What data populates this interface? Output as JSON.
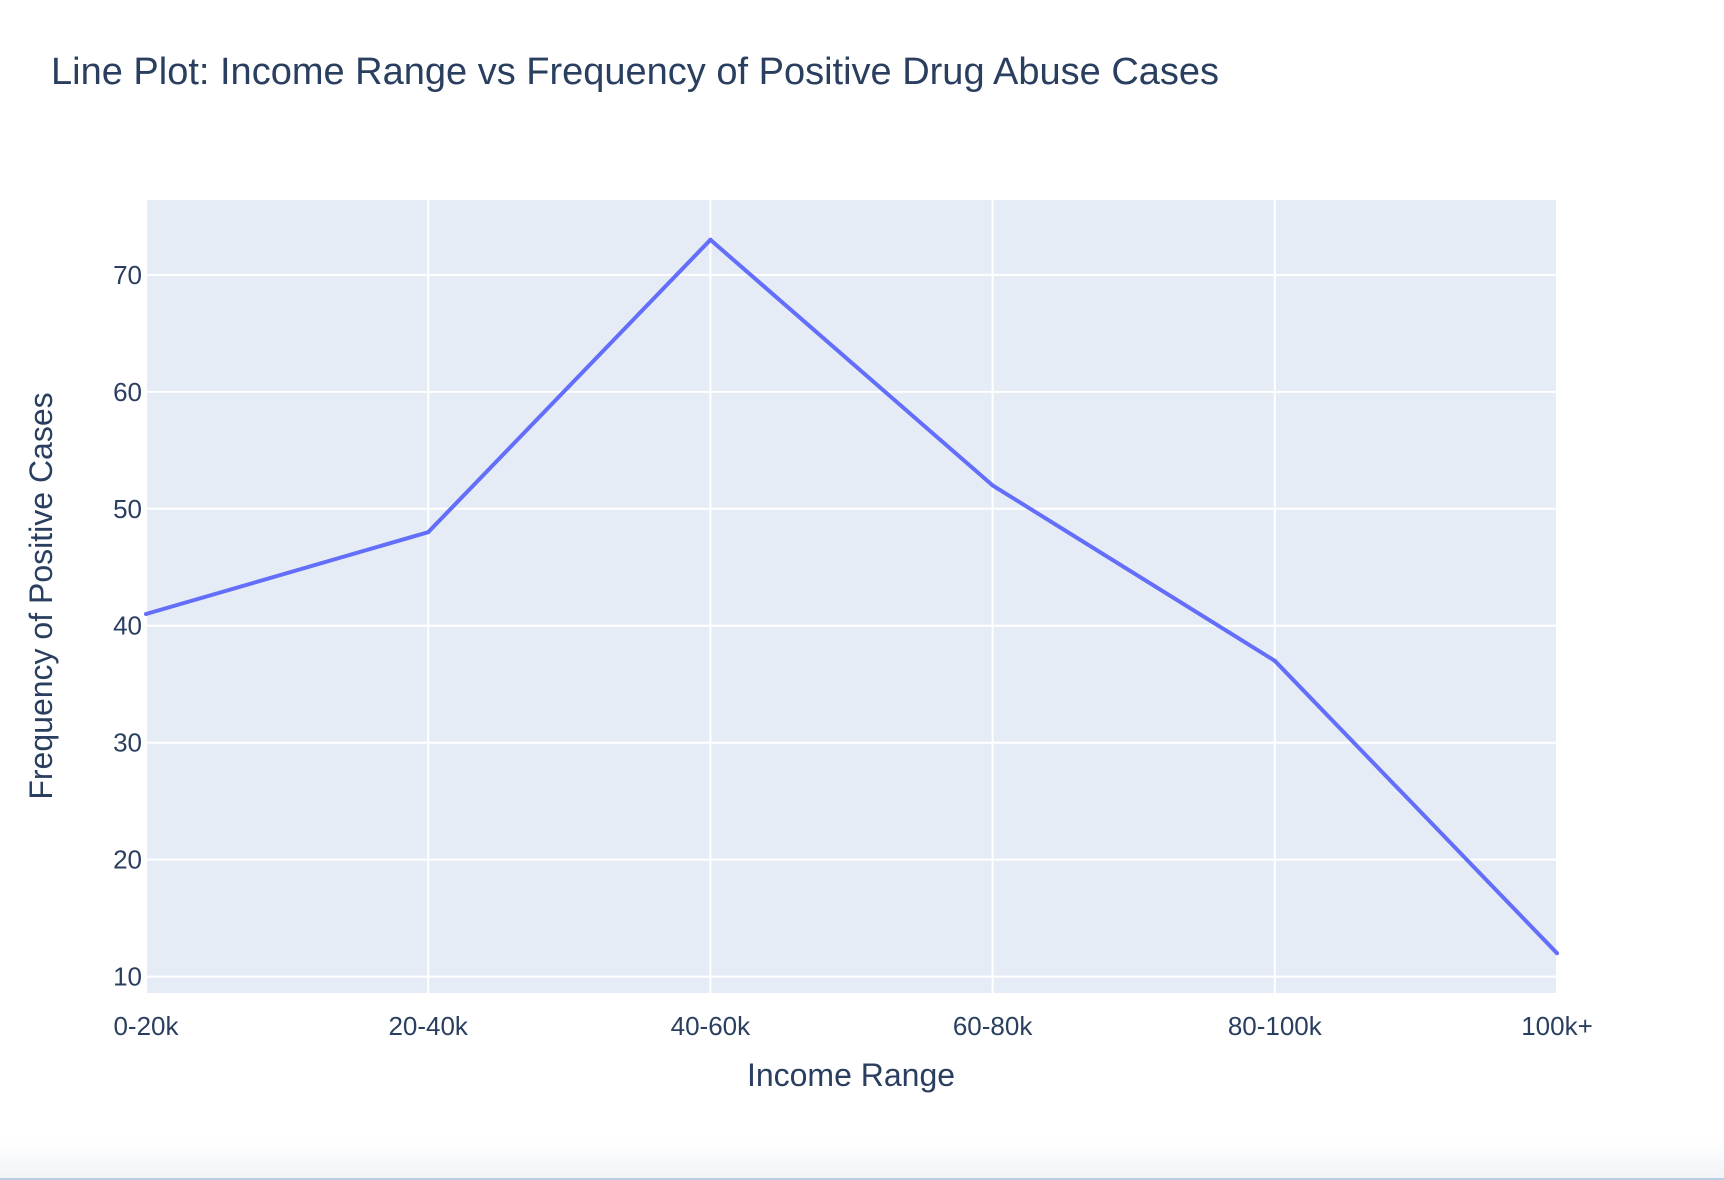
{
  "chart_data": {
    "type": "line",
    "title": "Line Plot: Income Range vs Frequency of Positive Drug Abuse Cases",
    "xlabel": "Income Range",
    "ylabel": "Frequency of Positive Cases",
    "categories": [
      "0-20k",
      "20-40k",
      "40-60k",
      "60-80k",
      "80-100k",
      "100k+"
    ],
    "series": [
      {
        "values": [
          41,
          48,
          73,
          52,
          37,
          12
        ]
      }
    ],
    "ylim": [
      8.6,
      76.4
    ],
    "yticks": [
      10,
      20,
      30,
      40,
      50,
      60,
      70
    ],
    "grid": true,
    "legend": "none",
    "colors": {
      "line": "#636efa",
      "plot_bg": "#e5ecf6",
      "grid": "#ffffff",
      "text": "#2a3f5f"
    }
  }
}
